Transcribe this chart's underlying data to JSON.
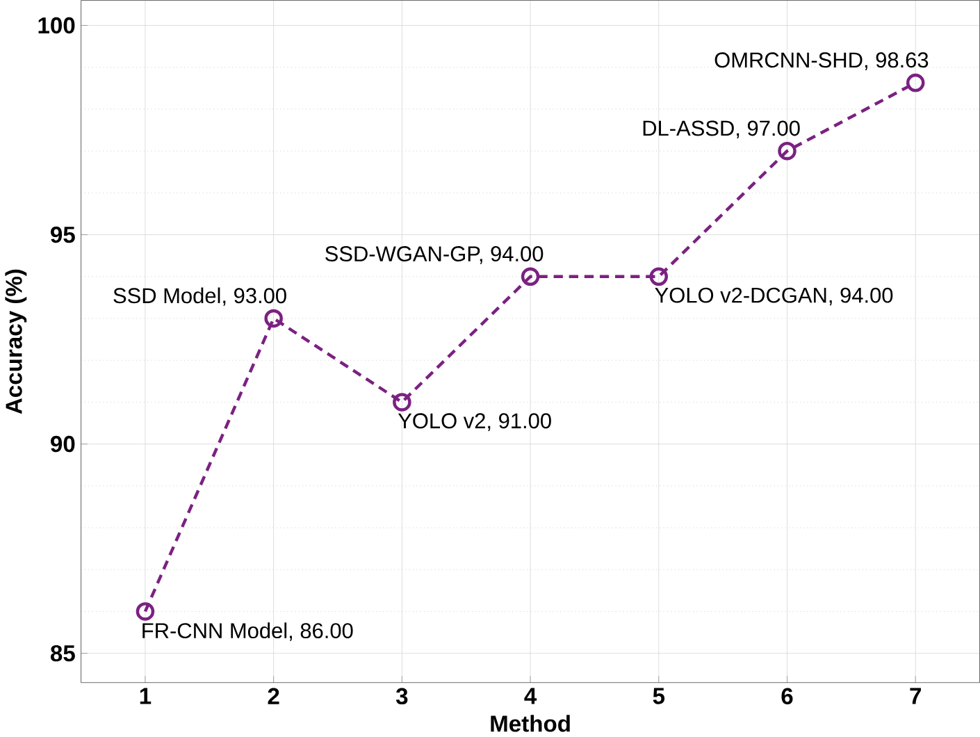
{
  "chart_data": {
    "type": "line",
    "xlabel": "Method",
    "ylabel": "Accuracy (%)",
    "x": [
      1,
      2,
      3,
      4,
      5,
      6,
      7
    ],
    "series": [
      {
        "color": "#7b2182",
        "values": [
          86.0,
          93.0,
          91.0,
          94.0,
          94.0,
          97.0,
          98.63
        ]
      }
    ],
    "xlim": [
      0.5,
      7.5
    ],
    "ylim": [
      84.3,
      100.6
    ],
    "xticks": [
      1,
      2,
      3,
      4,
      5,
      6,
      7
    ],
    "yticks": [
      85,
      90,
      95,
      100
    ],
    "grid": true,
    "marker": "circle",
    "line_style": "dashed",
    "annotations": [
      {
        "text": "FR-CNN Model, 86.00",
        "x": 1,
        "y": 86.0
      },
      {
        "text": "SSD Model, 93.00",
        "x": 2,
        "y": 93.0
      },
      {
        "text": "YOLO v2, 91.00",
        "x": 3,
        "y": 91.0
      },
      {
        "text": "SSD-WGAN-GP, 94.00",
        "x": 4,
        "y": 94.0
      },
      {
        "text": "YOLO v2-DCGAN, 94.00",
        "x": 5,
        "y": 94.0
      },
      {
        "text": "DL-ASSD, 97.00",
        "x": 6,
        "y": 97.0
      },
      {
        "text": "OMRCNN-SHD, 98.63",
        "x": 7,
        "y": 98.63
      }
    ]
  }
}
